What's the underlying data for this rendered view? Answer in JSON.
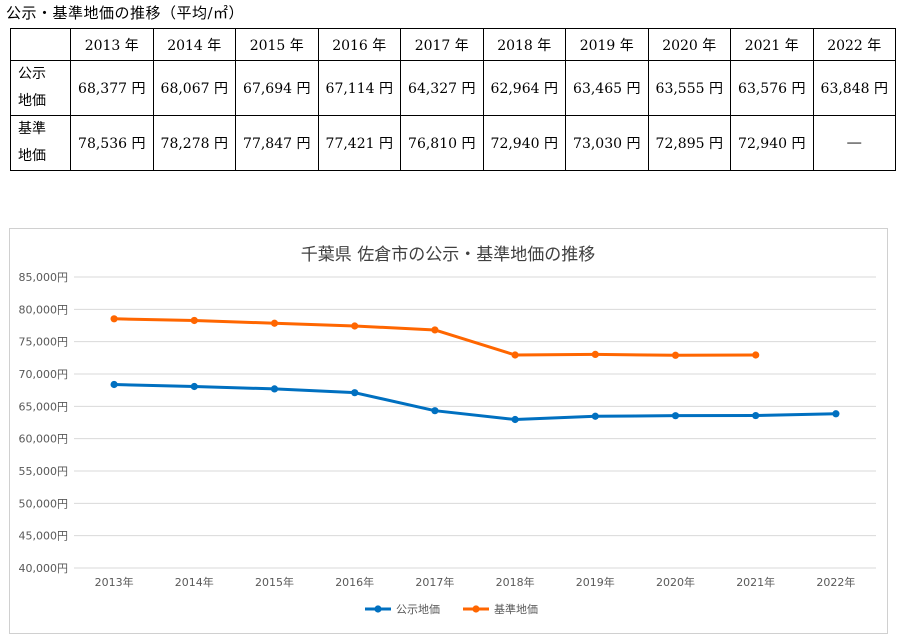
{
  "page": {
    "title": "公示・基準地価の推移（平均/㎡）"
  },
  "table": {
    "header": [
      "",
      "2013 年",
      "2014 年",
      "2015 年",
      "2016 年",
      "2017 年",
      "2018 年",
      "2019 年",
      "2020 年",
      "2021 年",
      "2022 年"
    ],
    "rows": [
      {
        "label_lines": [
          "公示",
          "地価"
        ],
        "cells": [
          "68,377 円",
          "68,067 円",
          "67,694 円",
          "67,114 円",
          "64,327 円",
          "62,964 円",
          "63,465 円",
          "63,555 円",
          "63,576 円",
          "63,848 円"
        ]
      },
      {
        "label_lines": [
          "基準",
          "地価"
        ],
        "cells": [
          "78,536 円",
          "78,278 円",
          "77,847 円",
          "77,421 円",
          "76,810 円",
          "72,940 円",
          "73,030 円",
          "72,895 円",
          "72,940 円",
          "―"
        ]
      }
    ]
  },
  "chart_data": {
    "type": "line",
    "title": "千葉県 佐倉市の公示・基準地価の推移",
    "categories": [
      "2013年",
      "2014年",
      "2015年",
      "2016年",
      "2017年",
      "2018年",
      "2019年",
      "2020年",
      "2021年",
      "2022年"
    ],
    "series": [
      {
        "name": "公示地価",
        "color": "#0070c0",
        "values": [
          68377,
          68067,
          67694,
          67114,
          64327,
          62964,
          63465,
          63555,
          63576,
          63848
        ]
      },
      {
        "name": "基準地価",
        "color": "#ff6600",
        "values": [
          78536,
          78278,
          77847,
          77421,
          76810,
          72940,
          73030,
          72895,
          72940,
          null
        ]
      }
    ],
    "ylim": [
      40000,
      85000
    ],
    "yticks": [
      {
        "value": 85000,
        "label": "85,000円"
      },
      {
        "value": 80000,
        "label": "80,000円"
      },
      {
        "value": 75000,
        "label": "75,000円"
      },
      {
        "value": 70000,
        "label": "70,000円"
      },
      {
        "value": 65000,
        "label": "65,000円"
      },
      {
        "value": 60000,
        "label": "60,000円"
      },
      {
        "value": 55000,
        "label": "55,000円"
      },
      {
        "value": 50000,
        "label": "50,000円"
      },
      {
        "value": 45000,
        "label": "45,000円"
      },
      {
        "value": 40000,
        "label": "40,000円"
      }
    ],
    "grid": true,
    "legend": "bottom-center"
  }
}
